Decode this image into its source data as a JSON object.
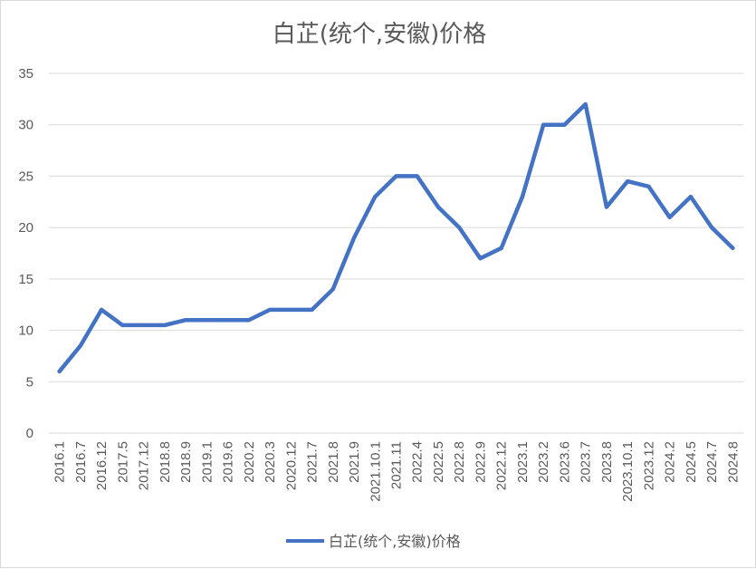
{
  "chart_data": {
    "type": "line",
    "title": "白芷(统个,安徽)价格",
    "xlabel": "",
    "ylabel": "",
    "ylim": [
      0,
      35
    ],
    "yticks": [
      0,
      5,
      10,
      15,
      20,
      25,
      30,
      35
    ],
    "grid": true,
    "legend_position": "bottom",
    "categories": [
      "2016.1",
      "2016.7",
      "2016.12",
      "2017.5",
      "2017.12",
      "2018.8",
      "2018.9",
      "2019.1",
      "2019.6",
      "2020.2",
      "2020.3",
      "2020.12",
      "2021.7",
      "2021.8",
      "2021.9",
      "2021.10.1",
      "2021.11",
      "2022.4",
      "2022.5",
      "2022.8",
      "2022.9",
      "2022.12",
      "2023.1",
      "2023.2",
      "2023.6",
      "2023.7",
      "2023.8",
      "2023.10.1",
      "2023.12",
      "2024.2",
      "2024.5",
      "2024.7",
      "2024.8"
    ],
    "series": [
      {
        "name": "白芷(统个,安徽)价格",
        "color": "#4472c4",
        "values": [
          6,
          8.5,
          12,
          10.5,
          10.5,
          10.5,
          11,
          11,
          11,
          11,
          12,
          12,
          12,
          14,
          19,
          23,
          25,
          25,
          22,
          20,
          17,
          18,
          23,
          30,
          30,
          32,
          22,
          24.5,
          24,
          21,
          23,
          20,
          18
        ]
      }
    ]
  }
}
